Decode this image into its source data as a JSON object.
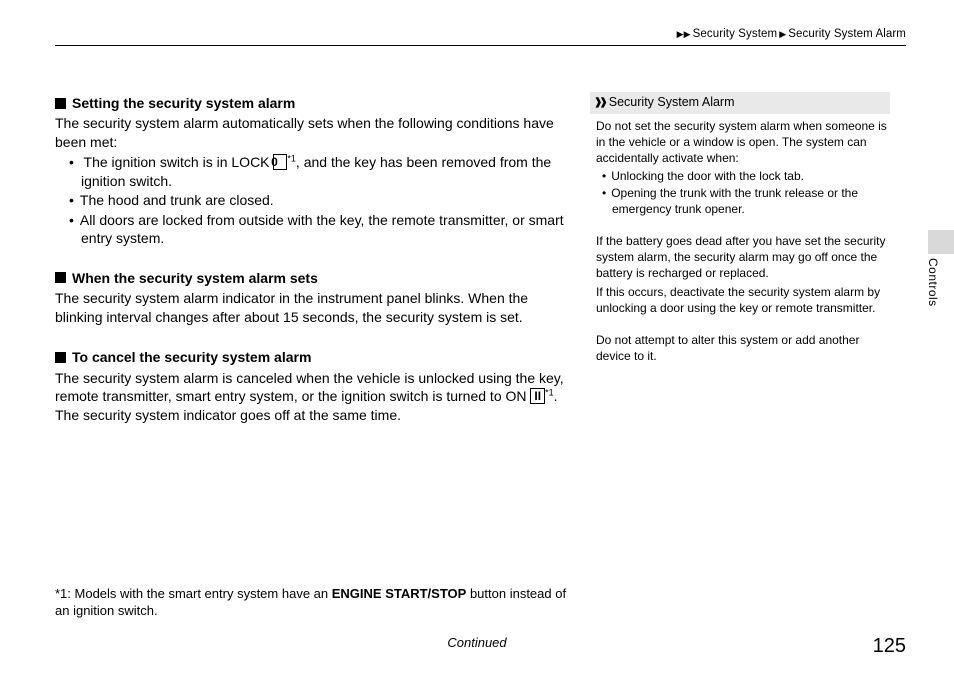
{
  "breadcrumb": {
    "sep": "▶▶",
    "part1": "Security System",
    "sep2": "▶",
    "part2": "Security System Alarm"
  },
  "main": {
    "sec1": {
      "title": "Setting the security system alarm",
      "intro": "The security system alarm automatically sets when the following conditions have been met:",
      "b1a": "The ignition switch is in LOCK ",
      "b1_key": "0",
      "b1_sup": "*1",
      "b1b": ", and the key has been removed from the ignition switch.",
      "b2": "The hood and trunk are closed.",
      "b3": "All doors are locked from outside with the key, the remote transmitter, or smart entry system."
    },
    "sec2": {
      "title": "When the security system alarm sets",
      "p": "The security system alarm indicator in the instrument panel blinks. When the blinking interval changes after about 15 seconds, the security system is set."
    },
    "sec3": {
      "title": "To cancel the security system alarm",
      "pa": "The security system alarm is canceled when the vehicle is unlocked using the key, remote transmitter, smart entry system, or the ignition switch is turned to ON ",
      "key": "II",
      "sup": "*1",
      "pb": ". The security system indicator goes off at the same time."
    }
  },
  "sidebar": {
    "header": "Security System Alarm",
    "p1": "Do not set the security system alarm when someone is in the vehicle or a window is open. The system can accidentally activate when:",
    "b1": "Unlocking the door with the lock tab.",
    "b2": "Opening the trunk with the trunk release or the emergency trunk opener.",
    "p2": "If the battery goes dead after you have set the security system alarm, the security alarm may go off once the battery is recharged or replaced.",
    "p3": "If this occurs, deactivate the security system alarm by unlocking a door using the key or remote transmitter.",
    "p4": "Do not attempt to alter this system or add another device to it."
  },
  "footnote": {
    "prefix": "*1: Models with the smart entry system have an ",
    "bold": "ENGINE START/STOP",
    "suffix": " button instead of an ignition switch."
  },
  "continued": "Continued",
  "page_number": "125",
  "side_tab": "Controls"
}
